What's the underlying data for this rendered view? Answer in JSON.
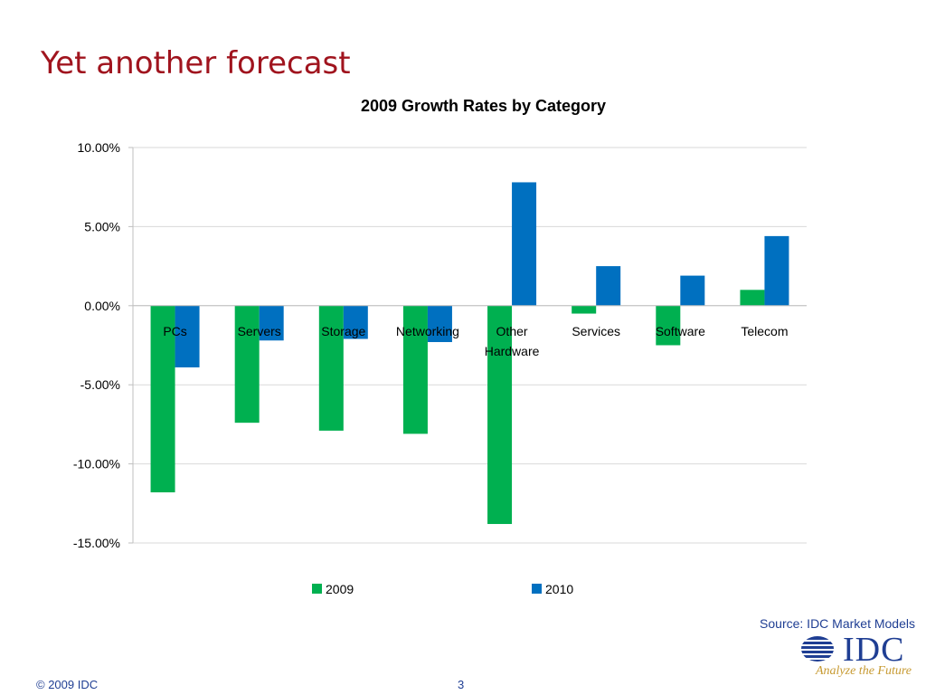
{
  "slide": {
    "title": "Yet another forecast",
    "source": "Source: IDC Market Models",
    "copyright": "© 2009 IDC",
    "page_number": "3",
    "logo": {
      "text": "IDC",
      "tagline": "Analyze the Future",
      "icon": "globe-icon"
    }
  },
  "colors": {
    "title": "#a0141e",
    "series_2009": "#00b050",
    "series_2010": "#0070c0",
    "text_blue": "#1f3e93",
    "logo_gold": "#c79a32"
  },
  "chart_data": {
    "type": "bar",
    "title": "2009 Growth Rates by Category",
    "categories": [
      "PCs",
      "Servers",
      "Storage",
      "Networking",
      "Other Hardware",
      "Services",
      "Software",
      "Telecom"
    ],
    "category_label_lines": [
      [
        "PCs"
      ],
      [
        "Servers"
      ],
      [
        "Storage"
      ],
      [
        "Networking"
      ],
      [
        "Other",
        "Hardware"
      ],
      [
        "Services"
      ],
      [
        "Software"
      ],
      [
        "Telecom"
      ]
    ],
    "series": [
      {
        "name": "2009",
        "values": [
          -11.8,
          -7.4,
          -7.9,
          -8.1,
          -13.8,
          -0.5,
          -2.5,
          1.0
        ]
      },
      {
        "name": "2010",
        "values": [
          -3.9,
          -2.2,
          -2.1,
          -2.3,
          7.8,
          2.5,
          1.9,
          4.4
        ]
      }
    ],
    "ylim": [
      -15,
      10
    ],
    "yticks": [
      10,
      5,
      0,
      -5,
      -10,
      -15
    ],
    "ytick_labels": [
      "10.00%",
      "5.00%",
      "0.00%",
      "-5.00%",
      "-10.00%",
      "-15.00%"
    ],
    "grid": true,
    "legend": "bottom"
  }
}
